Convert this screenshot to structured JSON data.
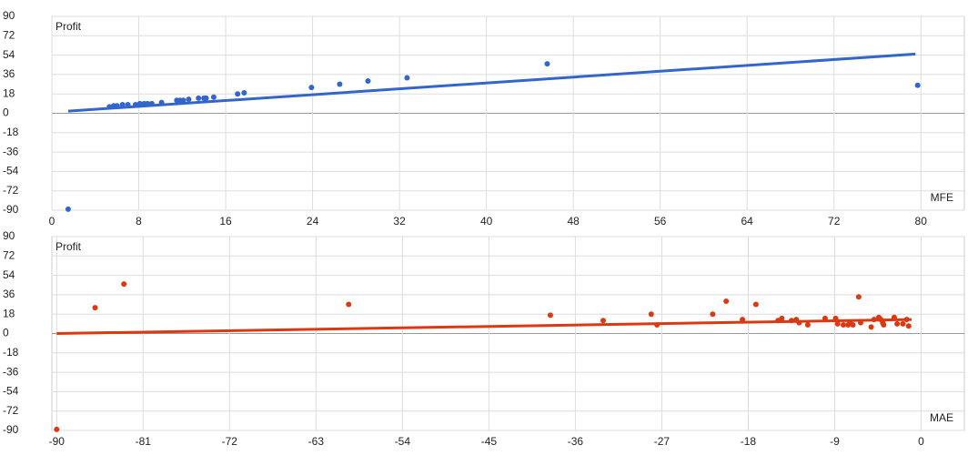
{
  "chart_data": [
    {
      "type": "scatter",
      "y_label": "Profit",
      "x_label": "MFE",
      "color": "#3366cc",
      "x": [
        1.5,
        5.3,
        5.7,
        6.0,
        6.5,
        7.0,
        7.7,
        8.1,
        8.5,
        8.8,
        9.2,
        10.1,
        11.5,
        11.8,
        12.1,
        12.6,
        13.5,
        14.0,
        14.2,
        14.9,
        17.1,
        17.7,
        23.9,
        26.5,
        29.1,
        32.7,
        45.6,
        79.7
      ],
      "y": [
        -89,
        6,
        7,
        7,
        8,
        8,
        8,
        9,
        9,
        9,
        9,
        10,
        12,
        12,
        12,
        13,
        14,
        14,
        14,
        15,
        18,
        19,
        24,
        27,
        30,
        33,
        46,
        26
      ],
      "trend_x": [
        1.5,
        79.5
      ],
      "trend_y": [
        2,
        55
      ],
      "xlim": [
        0,
        84
      ],
      "xticks": [
        0,
        8,
        16,
        24,
        32,
        40,
        48,
        56,
        64,
        72,
        80
      ],
      "ylim": [
        -90,
        90
      ],
      "yticks": [
        90,
        72,
        54,
        36,
        18,
        0,
        -18,
        -36,
        -54,
        -72,
        -90
      ],
      "grid": true
    },
    {
      "type": "scatter",
      "y_label": "Profit",
      "x_label": "MAE",
      "color": "#dc3912",
      "x": [
        -90,
        -86,
        -83,
        -59.6,
        -38.6,
        -33.1,
        -28.1,
        -27.5,
        -21.7,
        -20.3,
        -18.6,
        -17.2,
        -14.9,
        -14.5,
        -13.5,
        -13.0,
        -12.7,
        -11.8,
        -10.0,
        -8.9,
        -8.7,
        -8.1,
        -7.6,
        -7.4,
        -7.1,
        -6.3,
        -6.5,
        -5.2,
        -4.9,
        -4.4,
        -4.2,
        -4.0,
        -3.9,
        -2.8,
        -2.5,
        -1.9,
        -1.5,
        -1.3
      ],
      "y": [
        -89,
        24,
        46,
        27,
        17,
        12,
        18,
        8,
        18,
        30,
        13,
        27,
        12,
        14,
        12,
        13,
        10,
        8,
        14,
        14,
        9,
        8,
        8,
        10,
        8,
        10,
        34,
        6,
        13,
        15,
        13,
        10,
        8,
        15,
        9,
        9,
        13,
        7
      ],
      "trend_x": [
        -90,
        -1
      ],
      "trend_y": [
        0,
        13
      ],
      "xlim": [
        -90.5,
        4.5
      ],
      "xticks": [
        -90,
        -81,
        -72,
        -63,
        -54,
        -45,
        -36,
        -27,
        -18,
        -9,
        0
      ],
      "ylim": [
        -90,
        90
      ],
      "yticks": [
        90,
        72,
        54,
        36,
        18,
        0,
        -18,
        -36,
        -54,
        -72,
        -90
      ],
      "grid": true
    }
  ]
}
